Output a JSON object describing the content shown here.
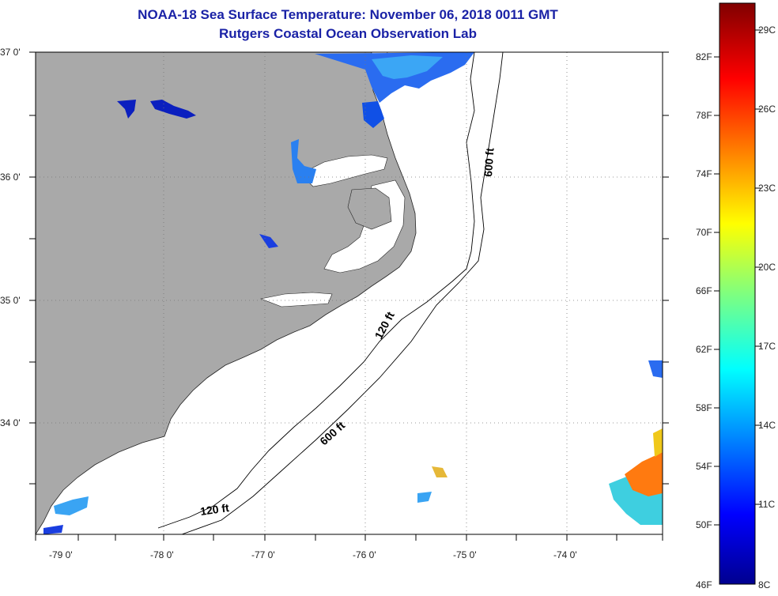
{
  "header": {
    "title": "NOAA-18 Sea Surface Temperature:  November 06, 2018 0011 GMT",
    "subtitle": "Rutgers Coastal Ocean Observation Lab"
  },
  "map": {
    "lat_labels": [
      "37 0'",
      "36 0'",
      "35 0'",
      "34 0'"
    ],
    "lon_labels": [
      "-79 0'",
      "-78 0'",
      "-77 0'",
      "-76 0'",
      "-75 0'",
      "-74 0'"
    ],
    "land_color": "#a9a9a9",
    "contours": {
      "shelf_120": "120 ft",
      "slope_600": "600 ft"
    }
  },
  "colorbar": {
    "fahrenheit": [
      "82F",
      "78F",
      "74F",
      "70F",
      "66F",
      "62F",
      "58F",
      "54F",
      "50F",
      "46F"
    ],
    "celsius": [
      "29C",
      "26C",
      "23C",
      "20C",
      "17C",
      "14C",
      "11C",
      "8C"
    ],
    "range_f": [
      46,
      86
    ],
    "colormap": "jet"
  }
}
